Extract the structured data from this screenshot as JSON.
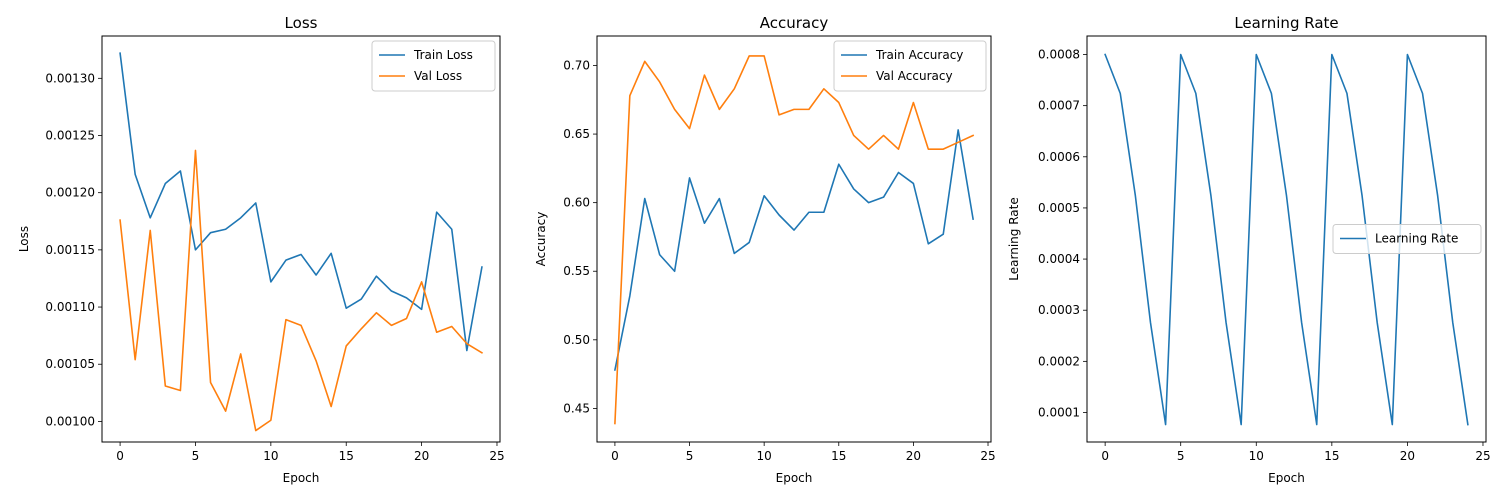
{
  "chart_data": [
    {
      "type": "line",
      "title": "Loss",
      "xlabel": "Epoch",
      "ylabel": "Loss",
      "xlim": [
        -1.2,
        25.2
      ],
      "ylim": [
        0.000982,
        0.001337
      ],
      "xticks": [
        0,
        5,
        10,
        15,
        20,
        25
      ],
      "yticks": [
        0.001,
        0.00105,
        0.0011,
        0.00115,
        0.0012,
        0.00125,
        0.0013
      ],
      "ytick_labels": [
        "0.00100",
        "0.00105",
        "0.00110",
        "0.00115",
        "0.00120",
        "0.00125",
        "0.00130"
      ],
      "legend_position": "upper right",
      "x": [
        0,
        1,
        2,
        3,
        4,
        5,
        6,
        7,
        8,
        9,
        10,
        11,
        12,
        13,
        14,
        15,
        16,
        17,
        18,
        19,
        20,
        21,
        22,
        23,
        24
      ],
      "series": [
        {
          "name": "Train Loss",
          "color": "#1f77b4",
          "values": [
            0.001322,
            0.001216,
            0.001178,
            0.001208,
            0.001219,
            0.00115,
            0.001165,
            0.001168,
            0.001178,
            0.001191,
            0.001122,
            0.001141,
            0.001146,
            0.001128,
            0.001147,
            0.001099,
            0.001107,
            0.001127,
            0.001114,
            0.001108,
            0.001098,
            0.001183,
            0.001168,
            0.001062,
            0.001135
          ]
        },
        {
          "name": "Val Loss",
          "color": "#ff7f0e",
          "values": [
            0.001176,
            0.001054,
            0.001167,
            0.001031,
            0.001027,
            0.001237,
            0.001034,
            0.001009,
            0.001059,
            0.000992,
            0.001001,
            0.001089,
            0.001084,
            0.001053,
            0.001013,
            0.001066,
            0.001081,
            0.001095,
            0.001084,
            0.00109,
            0.001122,
            0.001078,
            0.001083,
            0.001068,
            0.00106
          ]
        }
      ]
    },
    {
      "type": "line",
      "title": "Accuracy",
      "xlabel": "Epoch",
      "ylabel": "Accuracy",
      "xlim": [
        -1.2,
        25.2
      ],
      "ylim": [
        0.4255,
        0.7215
      ],
      "xticks": [
        0,
        5,
        10,
        15,
        20,
        25
      ],
      "yticks": [
        0.45,
        0.5,
        0.55,
        0.6,
        0.65,
        0.7
      ],
      "ytick_labels": [
        "0.45",
        "0.50",
        "0.55",
        "0.60",
        "0.65",
        "0.70"
      ],
      "legend_position": "upper right",
      "x": [
        0,
        1,
        2,
        3,
        4,
        5,
        6,
        7,
        8,
        9,
        10,
        11,
        12,
        13,
        14,
        15,
        16,
        17,
        18,
        19,
        20,
        21,
        22,
        23,
        24
      ],
      "series": [
        {
          "name": "Train Accuracy",
          "color": "#1f77b4",
          "values": [
            0.478,
            0.532,
            0.603,
            0.562,
            0.55,
            0.618,
            0.585,
            0.603,
            0.563,
            0.571,
            0.605,
            0.591,
            0.58,
            0.593,
            0.593,
            0.628,
            0.61,
            0.6,
            0.604,
            0.622,
            0.614,
            0.57,
            0.577,
            0.653,
            0.588
          ]
        },
        {
          "name": "Val Accuracy",
          "color": "#ff7f0e",
          "values": [
            0.439,
            0.678,
            0.703,
            0.688,
            0.668,
            0.654,
            0.693,
            0.668,
            0.683,
            0.707,
            0.707,
            0.664,
            0.668,
            0.668,
            0.683,
            0.673,
            0.649,
            0.639,
            0.649,
            0.639,
            0.673,
            0.639,
            0.639,
            0.644,
            0.649
          ]
        }
      ]
    },
    {
      "type": "line",
      "title": "Learning Rate",
      "xlabel": "Epoch",
      "ylabel": "Learning Rate",
      "xlim": [
        -1.2,
        25.2
      ],
      "ylim": [
        4.23e-05,
        0.0008362
      ],
      "xticks": [
        0,
        5,
        10,
        15,
        20,
        25
      ],
      "yticks": [
        0.0001,
        0.0002,
        0.0003,
        0.0004,
        0.0005,
        0.0006,
        0.0007,
        0.0008
      ],
      "ytick_labels": [
        "0.0001",
        "0.0002",
        "0.0003",
        "0.0004",
        "0.0005",
        "0.0006",
        "0.0007",
        "0.0008"
      ],
      "legend_position": "center right",
      "x": [
        0,
        1,
        2,
        3,
        4,
        5,
        6,
        7,
        8,
        9,
        10,
        11,
        12,
        13,
        14,
        15,
        16,
        17,
        18,
        19,
        20,
        21,
        22,
        23,
        24
      ],
      "series": [
        {
          "name": "Learning Rate",
          "color": "#1f77b4",
          "values": [
            0.0008,
            0.000724,
            0.000524,
            0.000276,
            7.64e-05,
            0.0008,
            0.000724,
            0.000524,
            0.000276,
            7.64e-05,
            0.0008,
            0.000724,
            0.000524,
            0.000276,
            7.64e-05,
            0.0008,
            0.000724,
            0.000524,
            0.000276,
            7.64e-05,
            0.0008,
            0.000724,
            0.000524,
            0.000276,
            7.64e-05
          ]
        }
      ]
    }
  ]
}
